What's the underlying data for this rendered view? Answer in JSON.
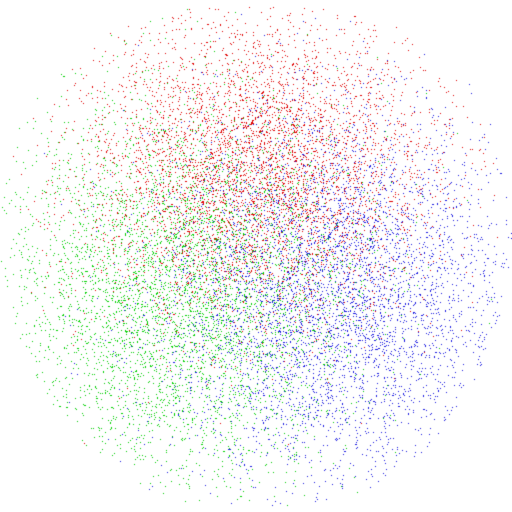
{
  "chart_data": {
    "type": "scatter",
    "title": "",
    "xlabel": "",
    "ylabel": "",
    "grid": false,
    "legend": "none",
    "axes_visible": false,
    "background": "#ffffff",
    "series": [
      {
        "color": "#e00000",
        "points_approx": 90000,
        "center": [
          0.5,
          0.33
        ],
        "spread": [
          0.17,
          0.15
        ]
      },
      {
        "color": "#00d000",
        "points_approx": 90000,
        "center": [
          0.35,
          0.57
        ],
        "spread": [
          0.17,
          0.18
        ]
      },
      {
        "color": "#1818e0",
        "points_approx": 90000,
        "center": [
          0.65,
          0.57
        ],
        "spread": [
          0.17,
          0.18
        ]
      }
    ]
  }
}
